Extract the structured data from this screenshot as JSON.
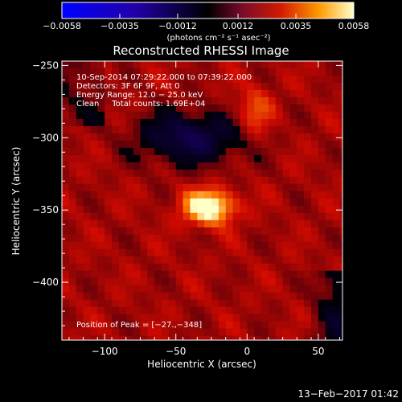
{
  "chart_data": {
    "type": "heatmap",
    "title": "Reconstructed RHESSI Image",
    "xlabel": "Heliocentric X (arcsec)",
    "ylabel": "Heliocentric Y (arcsec)",
    "xlim": [
      -130,
      67
    ],
    "ylim": [
      -440,
      -247
    ],
    "x_ticks": [
      -100,
      -50,
      0,
      50
    ],
    "x_tick_labels": [
      "−100",
      "−50",
      "0",
      "50"
    ],
    "y_ticks": [
      -250,
      -300,
      -350,
      -400
    ],
    "y_tick_labels": [
      "−250",
      "−300",
      "−350",
      "−400"
    ],
    "colorbar": {
      "range": [
        -0.0058,
        0.0058
      ],
      "ticks": [
        -0.0058,
        -0.0035,
        -0.0012,
        0.0012,
        0.0035,
        0.0058
      ],
      "tick_labels": [
        "−0.0058",
        "−0.0035",
        "−0.0012",
        "0.0012",
        "0.0035",
        "0.0058"
      ],
      "units_label": "(photons cm⁻² s⁻¹ asec⁻²)"
    },
    "annotations": [
      "10-Sep-2014 07:29:22.000 to 07:39:22.000",
      "Detectors: 3F 6F 9F, Att 0",
      "Energy Range: 12.0 − 25.0 keV",
      "Clean     Total counts: 1.69E+04"
    ],
    "peak_label": "Position of Peak = [−27.,−348]",
    "peak": [
      -27,
      -348
    ],
    "features": [
      {
        "x": -27,
        "y": -348,
        "amplitude": 0.0058,
        "sx": 12,
        "sy": 8
      },
      {
        "x": 5,
        "y": -282,
        "amplitude": 0.002,
        "sx": 9,
        "sy": 12
      },
      {
        "x": -40,
        "y": -300,
        "amplitude": -0.0035,
        "sx": 26,
        "sy": 13
      }
    ]
  },
  "footer": {
    "timestamp": "13−Feb−2017 01:42"
  }
}
